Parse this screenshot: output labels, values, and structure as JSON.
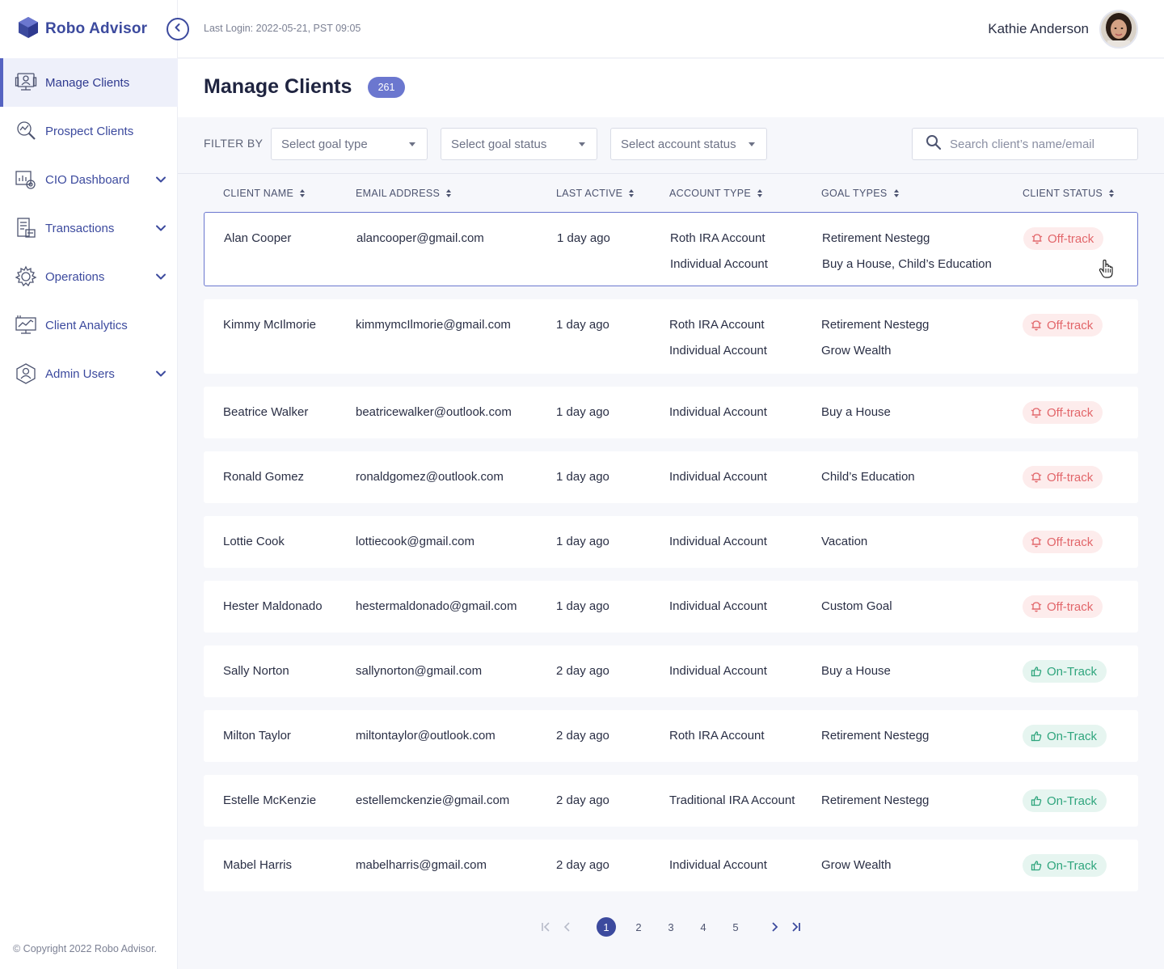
{
  "app": {
    "name": "Robo Advisor",
    "copyright": "© Copyright 2022 Robo Advisor."
  },
  "header": {
    "last_login": "Last Login: 2022-05-21, PST 09:05",
    "user_name": "Kathie Anderson"
  },
  "sidebar": {
    "items": [
      {
        "label": "Manage Clients",
        "icon": "manage-clients-icon",
        "active": true,
        "expandable": false
      },
      {
        "label": "Prospect Clients",
        "icon": "prospect-clients-icon",
        "active": false,
        "expandable": false
      },
      {
        "label": "CIO Dashboard",
        "icon": "cio-dashboard-icon",
        "active": false,
        "expandable": true
      },
      {
        "label": "Transactions",
        "icon": "transactions-icon",
        "active": false,
        "expandable": true
      },
      {
        "label": "Operations",
        "icon": "operations-icon",
        "active": false,
        "expandable": true
      },
      {
        "label": "Client Analytics",
        "icon": "client-analytics-icon",
        "active": false,
        "expandable": false
      },
      {
        "label": "Admin Users",
        "icon": "admin-users-icon",
        "active": false,
        "expandable": true
      }
    ]
  },
  "page": {
    "title": "Manage Clients",
    "count": "261"
  },
  "filters": {
    "label": "FILTER BY",
    "goal_type": "Select goal type",
    "goal_status": "Select goal status",
    "account_status": "Select account status",
    "search_placeholder": "Search client’s name/email"
  },
  "table": {
    "columns": [
      "CLIENT NAME",
      "EMAIL ADDRESS",
      "LAST ACTIVE",
      "ACCOUNT TYPE",
      "GOAL TYPES",
      "CLIENT STATUS"
    ],
    "rows": [
      {
        "name": "Alan Cooper",
        "email": "alancooper@gmail.com",
        "last_active": "1 day ago",
        "accounts": [
          "Roth IRA Account",
          "Individual Account"
        ],
        "goals": [
          "Retirement Nestegg",
          "Buy a House, Child’s Education"
        ],
        "status": "Off-track",
        "status_kind": "off"
      },
      {
        "name": "Kimmy McIlmorie",
        "email": "kimmymcIlmorie@gmail.com",
        "last_active": "1 day ago",
        "accounts": [
          "Roth IRA Account",
          "Individual Account"
        ],
        "goals": [
          "Retirement Nestegg",
          "Grow Wealth"
        ],
        "status": "Off-track",
        "status_kind": "off"
      },
      {
        "name": "Beatrice Walker",
        "email": "beatricewalker@outlook.com",
        "last_active": "1 day ago",
        "accounts": [
          "Individual Account"
        ],
        "goals": [
          "Buy a House"
        ],
        "status": "Off-track",
        "status_kind": "off"
      },
      {
        "name": "Ronald Gomez",
        "email": "ronaldgomez@outlook.com",
        "last_active": "1 day ago",
        "accounts": [
          "Individual Account"
        ],
        "goals": [
          "Child’s Education"
        ],
        "status": "Off-track",
        "status_kind": "off"
      },
      {
        "name": "Lottie Cook",
        "email": "lottiecook@gmail.com",
        "last_active": "1 day ago",
        "accounts": [
          "Individual Account"
        ],
        "goals": [
          "Vacation"
        ],
        "status": "Off-track",
        "status_kind": "off"
      },
      {
        "name": "Hester Maldonado",
        "email": "hestermaldonado@gmail.com",
        "last_active": "1 day ago",
        "accounts": [
          "Individual Account"
        ],
        "goals": [
          "Custom Goal"
        ],
        "status": "Off-track",
        "status_kind": "off"
      },
      {
        "name": "Sally Norton",
        "email": "sallynorton@gmail.com",
        "last_active": "2 day ago",
        "accounts": [
          "Individual Account"
        ],
        "goals": [
          "Buy a House"
        ],
        "status": "On-Track",
        "status_kind": "on"
      },
      {
        "name": "Milton Taylor",
        "email": "miltontaylor@outlook.com",
        "last_active": "2 day ago",
        "accounts": [
          "Roth IRA Account"
        ],
        "goals": [
          "Retirement Nestegg"
        ],
        "status": "On-Track",
        "status_kind": "on"
      },
      {
        "name": "Estelle McKenzie",
        "email": "estellemckenzie@gmail.com",
        "last_active": "2 day ago",
        "accounts": [
          "Traditional IRA Account"
        ],
        "goals": [
          "Retirement Nestegg"
        ],
        "status": "On-Track",
        "status_kind": "on"
      },
      {
        "name": "Mabel Harris",
        "email": "mabelharris@gmail.com",
        "last_active": "2 day ago",
        "accounts": [
          "Individual Account"
        ],
        "goals": [
          "Grow Wealth"
        ],
        "status": "On-Track",
        "status_kind": "on"
      }
    ]
  },
  "pagination": {
    "pages": [
      "1",
      "2",
      "3",
      "4",
      "5"
    ],
    "current": "1"
  },
  "colors": {
    "brand": "#3c4a9e",
    "accent": "#6b77cf",
    "off_track": "#e2666a",
    "on_track": "#2fa57d"
  }
}
